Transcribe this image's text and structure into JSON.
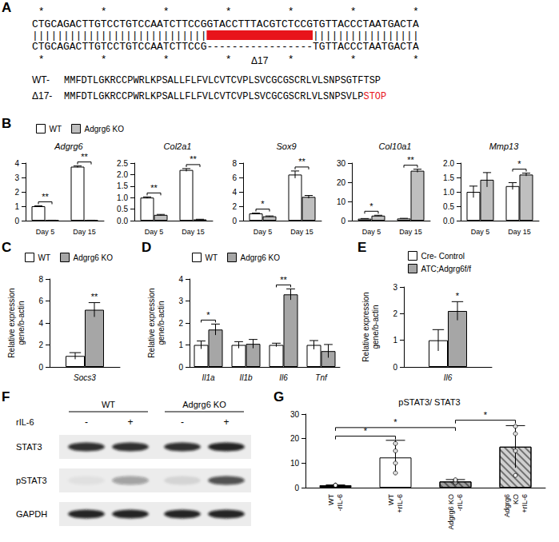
{
  "panel_A": {
    "panel": "A",
    "stars_top": " *         *         *         *         *         *         *",
    "seq_wt": "CTGCAGACTTGTCCTGTCCAATCTTCCGGTACCTTTACGTCTCCGTGTTACCCTAATGACTA",
    "match": "||||||||||||||||||||||||||||                 |||||||||||||||||",
    "seq_mut": "CTGCAGACTTGTCCTGTCCAATCTTCCG-----------------TGTTACCCTAATGACTA",
    "stars_bottom": " *         *         *         *         *         *         *",
    "deletion_label": "Δ17",
    "proteins": [
      {
        "label": "WT-",
        "sequence": "MMFDTLGKRCCPWRLKPSALLFLFVLCVTCVPLSVCGCGSCRLVLSNPSGTFTSP"
      },
      {
        "label": "Δ17-",
        "sequence": "MMFDTLGKRCCPWRLKPSALLFLFVLCVTCVPLSVCGCGSCRLVLSNPSVLP",
        "stop": "STOP"
      }
    ]
  },
  "chart_data": [
    {
      "panel": "B",
      "type": "bar",
      "legend": "top-left",
      "grid": false,
      "subplots": [
        {
          "title": "Adgrg6",
          "categories": [
            "Day 5",
            "Day 15"
          ],
          "series": [
            {
              "name": "WT",
              "color": "#ffffff",
              "values": [
                1.0,
                3.75
              ],
              "errors": [
                0.03,
                0.05
              ]
            },
            {
              "name": "Adgrg6 KO",
              "color": "#bfbfbf",
              "values": [
                0.02,
                0.02
              ],
              "errors": [
                0.01,
                0.01
              ]
            }
          ],
          "ylim": [
            0,
            4
          ],
          "yticks": [
            0,
            1,
            2,
            3,
            4
          ],
          "significance": [
            {
              "category": "Day 5",
              "label": "**"
            },
            {
              "category": "Day 15",
              "label": "**"
            }
          ]
        },
        {
          "title": "Col2a1",
          "categories": [
            "Day 5",
            "Day 15"
          ],
          "series": [
            {
              "name": "WT",
              "color": "#ffffff",
              "values": [
                1.0,
                2.2
              ],
              "errors": [
                0.03,
                0.06
              ]
            },
            {
              "name": "Adgrg6 KO",
              "color": "#bfbfbf",
              "values": [
                0.25,
                0.05
              ],
              "errors": [
                0.02,
                0.01
              ]
            }
          ],
          "ylim": [
            0,
            2.5
          ],
          "yticks": [
            {
              "value": 0,
              "label": "0.0"
            },
            0.5,
            {
              "value": 1,
              "label": "1.0"
            },
            1.5,
            {
              "value": 2,
              "label": "2.0"
            },
            2.5
          ],
          "significance": [
            {
              "category": "Day 5",
              "label": "**"
            },
            {
              "category": "Day 15",
              "label": "**"
            }
          ]
        },
        {
          "title": "Sox9",
          "categories": [
            "Day 5",
            "Day 15"
          ],
          "series": [
            {
              "name": "WT",
              "color": "#ffffff",
              "values": [
                1.0,
                6.4
              ],
              "errors": [
                0.05,
                0.5
              ]
            },
            {
              "name": "Adgrg6 KO",
              "color": "#bfbfbf",
              "values": [
                0.6,
                3.3
              ],
              "errors": [
                0.05,
                0.2
              ]
            }
          ],
          "ylim": [
            0,
            8
          ],
          "yticks": [
            0,
            2,
            4,
            6,
            8
          ],
          "significance": [
            {
              "category": "Day 5",
              "label": "*"
            },
            {
              "category": "Day 15",
              "label": "**"
            }
          ]
        },
        {
          "title": "Col10a1",
          "categories": [
            "Day 5",
            "Day 15"
          ],
          "series": [
            {
              "name": "WT",
              "color": "#ffffff",
              "values": [
                1.0,
                1.1
              ],
              "errors": [
                0.1,
                0.1
              ]
            },
            {
              "name": "Adgrg6 KO",
              "color": "#bfbfbf",
              "values": [
                2.6,
                26
              ],
              "errors": [
                0.2,
                0.8
              ]
            }
          ],
          "ylim": [
            0,
            30
          ],
          "yticks": [
            0,
            10,
            20,
            30
          ],
          "significance": [
            {
              "category": "Day 5",
              "label": "*"
            },
            {
              "category": "Day 15",
              "label": "**"
            }
          ]
        },
        {
          "title": "Mmp13",
          "categories": [
            "Day 5",
            "Day 15"
          ],
          "series": [
            {
              "name": "WT",
              "color": "#ffffff",
              "values": [
                1.0,
                1.2
              ],
              "errors": [
                0.2,
                0.12
              ]
            },
            {
              "name": "Adgrg6 KO",
              "color": "#bfbfbf",
              "values": [
                1.42,
                1.6
              ],
              "errors": [
                0.25,
                0.05
              ]
            }
          ],
          "ylim": [
            0,
            2
          ],
          "yticks": [
            {
              "value": 0,
              "label": "0.0"
            },
            0.5,
            {
              "value": 1,
              "label": "1.0"
            },
            1.5,
            {
              "value": 2,
              "label": "2.0"
            }
          ],
          "significance": [
            {
              "category": "Day 15",
              "label": "*"
            }
          ]
        }
      ]
    },
    {
      "panel": "C",
      "type": "bar",
      "legend": "top-left",
      "grid": false,
      "ylabel": "Relative expression gene/b-actin",
      "categories": [
        "Socs3"
      ],
      "series": [
        {
          "name": "WT",
          "color": "#ffffff",
          "values": [
            1.0
          ],
          "errors": [
            0.3
          ]
        },
        {
          "name": "Adgrg6 KO",
          "color": "#a6a6a6",
          "values": [
            5.2
          ],
          "errors": [
            0.65
          ]
        }
      ],
      "ylim": [
        0,
        8
      ],
      "yticks": [
        0,
        2,
        4,
        6,
        8
      ],
      "significance": [
        {
          "category": "Socs3",
          "series": "Adgrg6 KO",
          "label": "**"
        }
      ]
    },
    {
      "panel": "D",
      "type": "bar",
      "legend": "top-left",
      "grid": false,
      "ylabel": "Relative expression gene/b-actin",
      "categories": [
        "Il1a",
        "Il1b",
        "Il6",
        "Tnf"
      ],
      "series": [
        {
          "name": "WT",
          "color": "#ffffff",
          "values": [
            1.0,
            1.0,
            1.0,
            1.0
          ],
          "errors": [
            0.18,
            0.15,
            0.08,
            0.2
          ]
        },
        {
          "name": "Adgrg6 KO",
          "color": "#a6a6a6",
          "values": [
            1.7,
            1.05,
            3.3,
            0.72
          ],
          "errors": [
            0.25,
            0.2,
            0.25,
            0.3
          ]
        }
      ],
      "ylim": [
        0,
        4
      ],
      "yticks": [
        0,
        1,
        2,
        3,
        4
      ],
      "significance": [
        {
          "category": "Il1a",
          "label": "*"
        },
        {
          "category": "Il6",
          "label": "**"
        }
      ]
    },
    {
      "panel": "E",
      "type": "bar",
      "legend": "top-left",
      "grid": false,
      "ylabel": "Relative expression gene/b-actin",
      "categories": [
        "Il6"
      ],
      "series": [
        {
          "name": "Cre- Control",
          "color": "#ffffff",
          "values": [
            1.0
          ],
          "errors": [
            0.4
          ]
        },
        {
          "name": "ATC;Adgrg6f/f",
          "color": "#a6a6a6",
          "values": [
            2.1
          ],
          "errors": [
            0.35
          ]
        }
      ],
      "ylim": [
        0,
        3
      ],
      "yticks": [
        0,
        1,
        2,
        3
      ],
      "significance": [
        {
          "category": "Il6",
          "series": "ATC;Adgrg6f/f",
          "label": "*"
        }
      ]
    },
    {
      "panel": "G",
      "type": "bar",
      "grid": false,
      "title": "pSTAT3/ STAT3",
      "categories": [
        "WT\n-rIL-6",
        "WT\n+rIL-6",
        "Adgrg6 KO\n-rIL-6",
        "Adgrg6\nKO\n+rIL-6"
      ],
      "values": [
        1.0,
        12.3,
        2.5,
        16.7
      ],
      "errors": [
        0.1,
        7.0,
        0.8,
        8.6
      ],
      "colors": [
        "#000000",
        "#ffffff",
        "#9e9e9e",
        "#d0d0d0"
      ],
      "points": [
        [
          1,
          1,
          1,
          1
        ],
        [
          6,
          10,
          15,
          18
        ],
        [
          1.8,
          2.2,
          2.8,
          3.2
        ],
        [
          5,
          15,
          22,
          25
        ]
      ],
      "ylim": [
        0,
        30
      ],
      "yticks": [
        0,
        10,
        20,
        30
      ],
      "significance": [
        {
          "from": 0,
          "to": 1,
          "y": 21,
          "label": "*"
        },
        {
          "from": 0,
          "to": 2,
          "y": 24.5,
          "label": "*"
        },
        {
          "from": 2,
          "to": 3,
          "y": 27.5,
          "label": "*"
        }
      ]
    }
  ],
  "panel_F": {
    "panel": "F",
    "groups": [
      {
        "label": "WT",
        "lanes": [
          0,
          1
        ]
      },
      {
        "label": "Adgrg6 KO",
        "lanes": [
          2,
          3
        ]
      }
    ],
    "treatment": {
      "label": "rIL-6",
      "lanes": [
        "-",
        "+",
        "-",
        "+"
      ]
    },
    "rows": [
      {
        "label": "STAT3",
        "intensity": [
          0.85,
          0.85,
          0.85,
          0.9
        ]
      },
      {
        "label": "pSTAT3",
        "intensity": [
          0.05,
          0.35,
          0.1,
          0.7
        ]
      },
      {
        "label": "GAPDH",
        "intensity": [
          0.9,
          0.9,
          0.9,
          0.9
        ]
      }
    ]
  }
}
